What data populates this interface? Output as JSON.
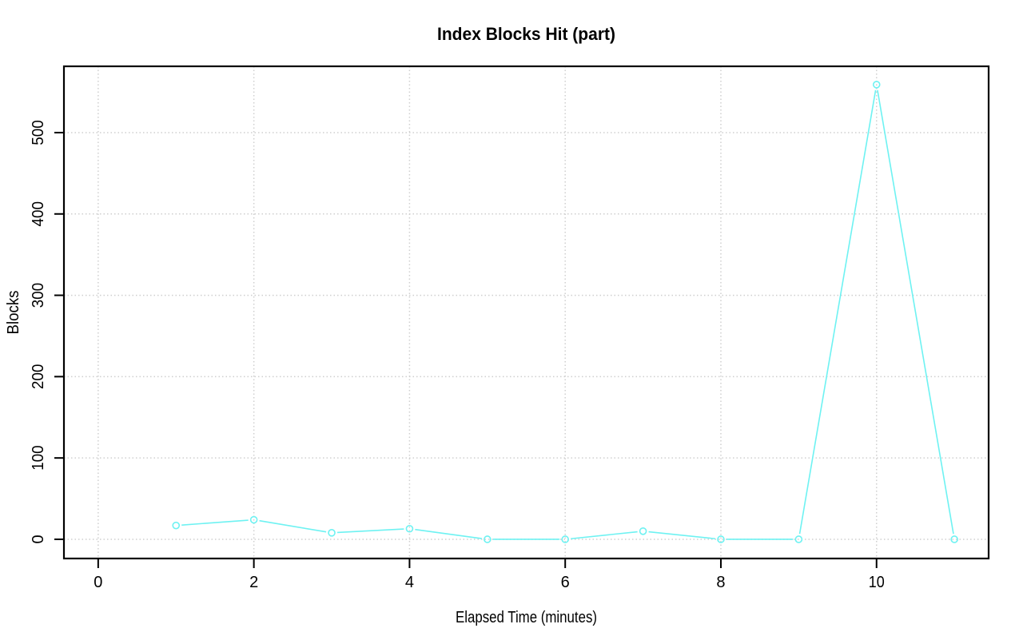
{
  "chart_data": {
    "type": "line",
    "title": "Index Blocks Hit (part)",
    "xlabel": "Elapsed Time (minutes)",
    "ylabel": "Blocks",
    "x": [
      1,
      2,
      3,
      4,
      5,
      6,
      7,
      8,
      9,
      10,
      11
    ],
    "y": [
      17,
      24,
      8,
      13,
      0,
      0,
      10,
      0,
      0,
      559,
      0
    ],
    "xticks": [
      0,
      2,
      4,
      6,
      8,
      10
    ],
    "yticks": [
      0,
      100,
      200,
      300,
      400,
      500
    ],
    "xlim": [
      -0.44,
      11.44
    ],
    "ylim": [
      -23.6,
      581.5
    ],
    "grid": true,
    "grid_style": "dotted",
    "legend": null,
    "line_color": "#6ef2f2",
    "grid_color": "#cfcfcf",
    "axis_color": "#000000",
    "background_color": "#ffffff",
    "marker": "open-circle"
  }
}
